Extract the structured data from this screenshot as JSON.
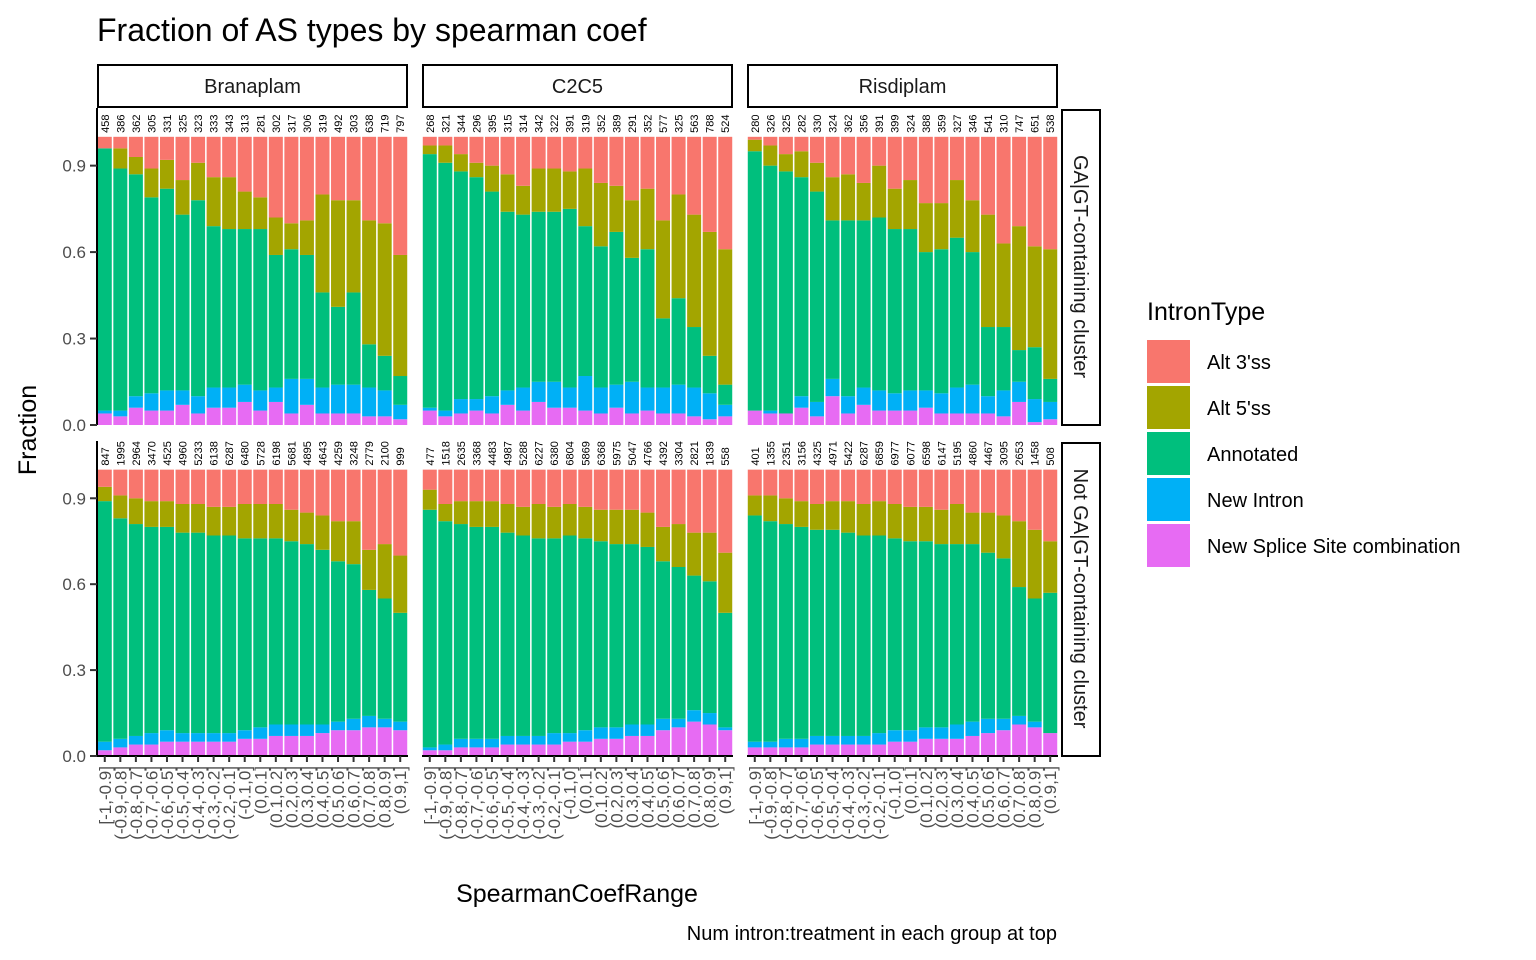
{
  "chart_data": {
    "type": "bar",
    "stacked": true,
    "title": "Fraction of AS types by spearman coef",
    "xlabel": "SpearmanCoefRange",
    "ylabel": "Fraction",
    "caption": "Num intron:treatment in each group at top",
    "ylim": [
      0,
      1.1
    ],
    "yticks": [
      0.0,
      0.3,
      0.6,
      0.9
    ],
    "ytick_labels": [
      "0.0",
      "0.3",
      "0.6",
      "0.9"
    ],
    "categories": [
      "[-1,-0.9]",
      "(-0.9,-0.8]",
      "(-0.8,-0.7]",
      "(-0.7,-0.6]",
      "(-0.6,-0.5]",
      "(-0.5,-0.4]",
      "(-0.4,-0.3]",
      "(-0.3,-0.2]",
      "(-0.2,-0.1]",
      "(-0.1,0]",
      "(0,0.1]",
      "(0.1,0.2]",
      "(0.2,0.3]",
      "(0.3,0.4]",
      "(0.4,0.5]",
      "(0.5,0.6]",
      "(0.6,0.7]",
      "(0.7,0.8]",
      "(0.8,0.9]",
      "(0.9,1]"
    ],
    "legend": {
      "title": "IntronType",
      "position": "right",
      "entries": [
        {
          "name": "Alt 3'ss",
          "color": "#F8766D"
        },
        {
          "name": "Alt 5'ss",
          "color": "#A3A500"
        },
        {
          "name": "Annotated",
          "color": "#00BF7D"
        },
        {
          "name": "New Intron",
          "color": "#00B0F6"
        },
        {
          "name": "New Splice Site combination",
          "color": "#E76BF3"
        }
      ]
    },
    "facet_cols": [
      "Branaplam",
      "C2C5",
      "Risdiplam"
    ],
    "facet_rows": [
      "GA|GT-containing cluster",
      "Not GA|GT-containing cluster"
    ],
    "panels": [
      {
        "col": "Branaplam",
        "row": "GA|GT-containing cluster",
        "counts": [
          "458",
          "386",
          "362",
          "305",
          "331",
          "325",
          "323",
          "333",
          "343",
          "313",
          "281",
          "302",
          "317",
          "306",
          "319",
          "492",
          "303",
          "638",
          "719",
          "797"
        ],
        "series": {
          "New Splice Site combination": [
            0.04,
            0.03,
            0.06,
            0.05,
            0.05,
            0.07,
            0.04,
            0.06,
            0.06,
            0.08,
            0.05,
            0.08,
            0.04,
            0.07,
            0.04,
            0.04,
            0.04,
            0.03,
            0.03,
            0.02
          ],
          "New Intron": [
            0.01,
            0.02,
            0.04,
            0.06,
            0.07,
            0.05,
            0.06,
            0.07,
            0.07,
            0.06,
            0.07,
            0.05,
            0.12,
            0.09,
            0.09,
            0.1,
            0.1,
            0.1,
            0.09,
            0.05
          ],
          "Annotated": [
            0.91,
            0.84,
            0.77,
            0.68,
            0.7,
            0.61,
            0.68,
            0.56,
            0.55,
            0.54,
            0.56,
            0.46,
            0.45,
            0.43,
            0.33,
            0.27,
            0.32,
            0.15,
            0.12,
            0.1
          ],
          "Alt 5'ss": [
            0.0,
            0.07,
            0.06,
            0.1,
            0.1,
            0.12,
            0.13,
            0.17,
            0.18,
            0.13,
            0.11,
            0.13,
            0.09,
            0.12,
            0.34,
            0.37,
            0.32,
            0.43,
            0.46,
            0.42
          ],
          "Alt 3'ss": [
            0.04,
            0.04,
            0.07,
            0.11,
            0.08,
            0.15,
            0.09,
            0.14,
            0.14,
            0.19,
            0.21,
            0.28,
            0.3,
            0.29,
            0.2,
            0.22,
            0.22,
            0.29,
            0.3,
            0.41
          ]
        }
      },
      {
        "col": "C2C5",
        "row": "GA|GT-containing cluster",
        "counts": [
          "268",
          "321",
          "344",
          "296",
          "395",
          "315",
          "314",
          "342",
          "322",
          "391",
          "319",
          "352",
          "389",
          "291",
          "352",
          "577",
          "325",
          "563",
          "788",
          "524"
        ],
        "series": {
          "New Splice Site combination": [
            0.05,
            0.03,
            0.04,
            0.05,
            0.04,
            0.07,
            0.05,
            0.08,
            0.06,
            0.06,
            0.05,
            0.04,
            0.06,
            0.04,
            0.05,
            0.04,
            0.04,
            0.03,
            0.02,
            0.03
          ],
          "New Intron": [
            0.01,
            0.02,
            0.05,
            0.04,
            0.06,
            0.05,
            0.08,
            0.07,
            0.09,
            0.07,
            0.12,
            0.09,
            0.08,
            0.11,
            0.08,
            0.09,
            0.1,
            0.1,
            0.09,
            0.04
          ],
          "Annotated": [
            0.88,
            0.86,
            0.79,
            0.77,
            0.71,
            0.62,
            0.6,
            0.59,
            0.59,
            0.62,
            0.52,
            0.49,
            0.53,
            0.43,
            0.48,
            0.24,
            0.3,
            0.21,
            0.13,
            0.07
          ],
          "Alt 5'ss": [
            0.03,
            0.06,
            0.06,
            0.05,
            0.09,
            0.13,
            0.1,
            0.15,
            0.15,
            0.13,
            0.2,
            0.22,
            0.16,
            0.2,
            0.21,
            0.34,
            0.36,
            0.39,
            0.43,
            0.47
          ],
          "Alt 3'ss": [
            0.03,
            0.03,
            0.06,
            0.09,
            0.1,
            0.13,
            0.17,
            0.11,
            0.11,
            0.12,
            0.11,
            0.16,
            0.17,
            0.22,
            0.18,
            0.29,
            0.2,
            0.27,
            0.33,
            0.39
          ]
        }
      },
      {
        "col": "Risdiplam",
        "row": "GA|GT-containing cluster",
        "counts": [
          "280",
          "326",
          "325",
          "282",
          "330",
          "324",
          "362",
          "356",
          "391",
          "399",
          "324",
          "388",
          "359",
          "327",
          "346",
          "541",
          "310",
          "747",
          "651",
          "538"
        ],
        "series": {
          "New Splice Site combination": [
            0.05,
            0.04,
            0.04,
            0.06,
            0.03,
            0.1,
            0.04,
            0.07,
            0.05,
            0.05,
            0.05,
            0.06,
            0.04,
            0.04,
            0.04,
            0.04,
            0.03,
            0.08,
            0.01,
            0.02
          ],
          "New Intron": [
            0.0,
            0.01,
            0.0,
            0.04,
            0.05,
            0.06,
            0.06,
            0.06,
            0.07,
            0.06,
            0.07,
            0.06,
            0.07,
            0.09,
            0.1,
            0.06,
            0.09,
            0.07,
            0.08,
            0.06
          ],
          "Annotated": [
            0.9,
            0.85,
            0.84,
            0.76,
            0.73,
            0.55,
            0.61,
            0.58,
            0.6,
            0.57,
            0.56,
            0.48,
            0.5,
            0.52,
            0.46,
            0.24,
            0.22,
            0.11,
            0.18,
            0.08
          ],
          "Alt 5'ss": [
            0.04,
            0.07,
            0.06,
            0.09,
            0.1,
            0.15,
            0.16,
            0.13,
            0.18,
            0.14,
            0.17,
            0.17,
            0.16,
            0.2,
            0.18,
            0.39,
            0.29,
            0.43,
            0.35,
            0.45
          ],
          "Alt 3'ss": [
            0.01,
            0.03,
            0.06,
            0.05,
            0.09,
            0.14,
            0.13,
            0.16,
            0.1,
            0.18,
            0.15,
            0.23,
            0.23,
            0.15,
            0.22,
            0.27,
            0.37,
            0.31,
            0.38,
            0.39
          ]
        }
      },
      {
        "col": "Branaplam",
        "row": "Not GA|GT-containing cluster",
        "counts": [
          "847",
          "1995",
          "2964",
          "3470",
          "4525",
          "4960",
          "5233",
          "6138",
          "6287",
          "6480",
          "5728",
          "6198",
          "5681",
          "4895",
          "4643",
          "4259",
          "3248",
          "2779",
          "2100",
          "999"
        ],
        "series": {
          "New Splice Site combination": [
            0.02,
            0.03,
            0.04,
            0.04,
            0.05,
            0.05,
            0.05,
            0.05,
            0.05,
            0.06,
            0.06,
            0.07,
            0.07,
            0.07,
            0.08,
            0.09,
            0.09,
            0.1,
            0.1,
            0.09
          ],
          "New Intron": [
            0.03,
            0.03,
            0.03,
            0.04,
            0.04,
            0.03,
            0.03,
            0.03,
            0.03,
            0.03,
            0.04,
            0.04,
            0.04,
            0.04,
            0.03,
            0.03,
            0.04,
            0.04,
            0.03,
            0.03
          ],
          "Annotated": [
            0.84,
            0.77,
            0.74,
            0.72,
            0.71,
            0.7,
            0.7,
            0.69,
            0.69,
            0.67,
            0.66,
            0.65,
            0.64,
            0.63,
            0.61,
            0.56,
            0.54,
            0.44,
            0.42,
            0.38
          ],
          "Alt 5'ss": [
            0.05,
            0.08,
            0.09,
            0.09,
            0.09,
            0.1,
            0.1,
            0.1,
            0.1,
            0.12,
            0.12,
            0.12,
            0.11,
            0.11,
            0.12,
            0.14,
            0.15,
            0.14,
            0.19,
            0.2
          ],
          "Alt 3'ss": [
            0.06,
            0.09,
            0.1,
            0.11,
            0.11,
            0.12,
            0.12,
            0.13,
            0.13,
            0.12,
            0.12,
            0.12,
            0.14,
            0.15,
            0.16,
            0.18,
            0.18,
            0.28,
            0.26,
            0.3
          ]
        }
      },
      {
        "col": "C2C5",
        "row": "Not GA|GT-containing cluster",
        "counts": [
          "477",
          "1518",
          "2635",
          "3368",
          "4483",
          "4987",
          "5288",
          "6227",
          "6380",
          "6804",
          "5869",
          "6368",
          "5975",
          "5047",
          "4766",
          "4392",
          "3304",
          "2821",
          "1839",
          "558"
        ],
        "series": {
          "New Splice Site combination": [
            0.02,
            0.02,
            0.03,
            0.03,
            0.03,
            0.04,
            0.04,
            0.04,
            0.04,
            0.05,
            0.05,
            0.06,
            0.06,
            0.07,
            0.07,
            0.09,
            0.1,
            0.12,
            0.11,
            0.09
          ],
          "New Intron": [
            0.01,
            0.02,
            0.03,
            0.03,
            0.03,
            0.03,
            0.03,
            0.03,
            0.04,
            0.03,
            0.04,
            0.04,
            0.04,
            0.04,
            0.04,
            0.04,
            0.03,
            0.04,
            0.04,
            0.01
          ],
          "Annotated": [
            0.83,
            0.78,
            0.75,
            0.74,
            0.74,
            0.71,
            0.7,
            0.69,
            0.68,
            0.69,
            0.67,
            0.65,
            0.64,
            0.63,
            0.62,
            0.55,
            0.53,
            0.47,
            0.46,
            0.4
          ],
          "Alt 5'ss": [
            0.07,
            0.06,
            0.08,
            0.09,
            0.09,
            0.1,
            0.1,
            0.12,
            0.11,
            0.11,
            0.11,
            0.11,
            0.12,
            0.12,
            0.12,
            0.12,
            0.15,
            0.15,
            0.17,
            0.21
          ],
          "Alt 3'ss": [
            0.07,
            0.12,
            0.11,
            0.11,
            0.11,
            0.12,
            0.13,
            0.12,
            0.13,
            0.12,
            0.13,
            0.14,
            0.14,
            0.14,
            0.15,
            0.2,
            0.19,
            0.22,
            0.22,
            0.29
          ]
        }
      },
      {
        "col": "Risdiplam",
        "row": "Not GA|GT-containing cluster",
        "counts": [
          "401",
          "1355",
          "2351",
          "3156",
          "4325",
          "4971",
          "5422",
          "6287",
          "6859",
          "6977",
          "6077",
          "6598",
          "6147",
          "5195",
          "4860",
          "4467",
          "3095",
          "2653",
          "1458",
          "508"
        ],
        "series": {
          "New Splice Site combination": [
            0.03,
            0.03,
            0.03,
            0.03,
            0.04,
            0.04,
            0.04,
            0.04,
            0.04,
            0.05,
            0.05,
            0.06,
            0.06,
            0.06,
            0.07,
            0.08,
            0.09,
            0.11,
            0.1,
            0.08
          ],
          "New Intron": [
            0.02,
            0.02,
            0.03,
            0.03,
            0.03,
            0.03,
            0.03,
            0.03,
            0.04,
            0.04,
            0.04,
            0.04,
            0.04,
            0.05,
            0.05,
            0.05,
            0.04,
            0.03,
            0.02,
            0.0
          ],
          "Annotated": [
            0.79,
            0.77,
            0.75,
            0.74,
            0.72,
            0.72,
            0.71,
            0.7,
            0.69,
            0.67,
            0.66,
            0.65,
            0.64,
            0.63,
            0.62,
            0.58,
            0.56,
            0.45,
            0.43,
            0.49
          ],
          "Alt 5'ss": [
            0.07,
            0.09,
            0.09,
            0.09,
            0.09,
            0.1,
            0.11,
            0.11,
            0.12,
            0.12,
            0.12,
            0.12,
            0.12,
            0.14,
            0.11,
            0.14,
            0.15,
            0.23,
            0.24,
            0.18
          ],
          "Alt 3'ss": [
            0.09,
            0.09,
            0.1,
            0.11,
            0.12,
            0.11,
            0.11,
            0.12,
            0.11,
            0.12,
            0.13,
            0.13,
            0.14,
            0.12,
            0.15,
            0.15,
            0.16,
            0.18,
            0.21,
            0.25
          ]
        }
      }
    ]
  }
}
